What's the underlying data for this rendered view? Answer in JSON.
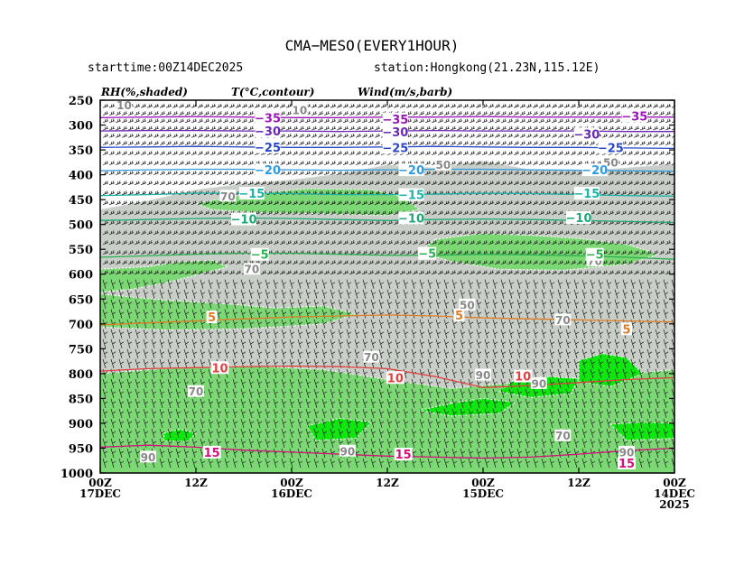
{
  "chart_data": {
    "type": "heatmap",
    "title": "CMA−MESO(EVERY1HOUR)",
    "subtitle_left": "starttime:00Z14DEC2025",
    "subtitle_right": "station:Hongkong(21.23N,115.12E)",
    "legend": {
      "rh": "RH(%,shaded)",
      "temp": "T(°C,contour)",
      "wind": "Wind(m/s,barb)"
    },
    "y_axis": {
      "label": "",
      "ticks": [
        "250",
        "300",
        "350",
        "400",
        "450",
        "500",
        "550",
        "600",
        "650",
        "700",
        "750",
        "800",
        "850",
        "900",
        "950",
        "1000"
      ],
      "ylim": [
        250,
        1000
      ]
    },
    "x_axis": {
      "label": "",
      "ticks": [
        {
          "line1": "00Z",
          "line2": "17DEC",
          "line3": ""
        },
        {
          "line1": "12Z",
          "line2": "",
          "line3": ""
        },
        {
          "line1": "00Z",
          "line2": "16DEC",
          "line3": ""
        },
        {
          "line1": "12Z",
          "line2": "",
          "line3": ""
        },
        {
          "line1": "00Z",
          "line2": "15DEC",
          "line3": ""
        },
        {
          "line1": "12Z",
          "line2": "",
          "line3": ""
        },
        {
          "line1": "00Z",
          "line2": "14DEC",
          "line3": "2025"
        }
      ],
      "hours": [
        72,
        60,
        48,
        36,
        24,
        12,
        0
      ]
    },
    "temperature_contours": [
      {
        "value": -35,
        "label": "−35",
        "color": "#9a14b8",
        "levels": [
          285,
          284,
          283,
          284,
          285,
          285,
          284,
          284,
          283,
          284,
          284,
          284,
          284
        ]
      },
      {
        "value": -30,
        "label": "−30",
        "color": "#6a28b4",
        "levels": [
          312,
          311,
          311,
          312,
          312,
          313,
          312,
          311,
          312,
          312,
          312,
          313,
          313
        ]
      },
      {
        "value": -25,
        "label": "−25",
        "color": "#2848c8",
        "levels": [
          345,
          344,
          343,
          344,
          345,
          345,
          344,
          343,
          344,
          345,
          345,
          346,
          347
        ]
      },
      {
        "value": -20,
        "label": "−20",
        "color": "#2f9be0",
        "levels": [
          392,
          390,
          389,
          389,
          390,
          391,
          390,
          389,
          389,
          390,
          391,
          392,
          393
        ]
      },
      {
        "value": -15,
        "label": "−15",
        "color": "#1ab4a8",
        "levels": [
          442,
          440,
          437,
          437,
          438,
          440,
          440,
          439,
          437,
          438,
          440,
          442,
          443
        ]
      },
      {
        "value": -10,
        "label": "−10",
        "color": "#1ea878",
        "levels": [
          492,
          490,
          488,
          487,
          488,
          490,
          492,
          490,
          489,
          490,
          492,
          494,
          496
        ]
      },
      {
        "value": -5,
        "label": "−5",
        "color": "#2ab050",
        "levels": [
          566,
          563,
          560,
          558,
          558,
          560,
          562,
          562,
          560,
          561,
          563,
          566,
          570
        ]
      },
      {
        "value": 5,
        "label": "5",
        "color": "#e07c24",
        "levels": [
          702,
          698,
          694,
          690,
          686,
          684,
          682,
          684,
          688,
          690,
          692,
          694,
          696
        ]
      },
      {
        "value": 10,
        "label": "10",
        "color": "#e04040",
        "levels": [
          795,
          790,
          788,
          786,
          785,
          786,
          790,
          806,
          828,
          824,
          818,
          812,
          808
        ]
      },
      {
        "value": 15,
        "label": "15",
        "color": "#d4107c",
        "levels": [
          948,
          944,
          948,
          954,
          958,
          962,
          966,
          968,
          970,
          968,
          962,
          955,
          950
        ]
      }
    ],
    "contour_labels": [
      {
        "text": "−35",
        "hour": 51,
        "p": 285,
        "c": "#9a14b8"
      },
      {
        "text": "−35",
        "hour": 35,
        "p": 288,
        "c": "#9a14b8"
      },
      {
        "text": "−35",
        "hour": 5,
        "p": 282,
        "c": "#9a14b8"
      },
      {
        "text": "−30",
        "hour": 51,
        "p": 312,
        "c": "#6a28b4"
      },
      {
        "text": "−30",
        "hour": 35,
        "p": 314,
        "c": "#6a28b4"
      },
      {
        "text": "−30",
        "hour": 11,
        "p": 318,
        "c": "#6a28b4"
      },
      {
        "text": "−25",
        "hour": 51,
        "p": 344,
        "c": "#2848c8"
      },
      {
        "text": "−25",
        "hour": 35,
        "p": 345,
        "c": "#2848c8"
      },
      {
        "text": "−25",
        "hour": 8,
        "p": 345,
        "c": "#2848c8"
      },
      {
        "text": "−20",
        "hour": 51,
        "p": 390,
        "c": "#2f9be0"
      },
      {
        "text": "−20",
        "hour": 33,
        "p": 390,
        "c": "#2f9be0"
      },
      {
        "text": "−20",
        "hour": 10,
        "p": 390,
        "c": "#2f9be0"
      },
      {
        "text": "−15",
        "hour": 53,
        "p": 437,
        "c": "#1ab4a8"
      },
      {
        "text": "−15",
        "hour": 33,
        "p": 440,
        "c": "#1ab4a8"
      },
      {
        "text": "−15",
        "hour": 11,
        "p": 437,
        "c": "#1ab4a8"
      },
      {
        "text": "−10",
        "hour": 54,
        "p": 489,
        "c": "#1ea878"
      },
      {
        "text": "−10",
        "hour": 33,
        "p": 487,
        "c": "#1ea878"
      },
      {
        "text": "−10",
        "hour": 12,
        "p": 486,
        "c": "#1ea878"
      },
      {
        "text": "−5",
        "hour": 52,
        "p": 560,
        "c": "#2ab050"
      },
      {
        "text": "−5",
        "hour": 31,
        "p": 558,
        "c": "#2ab050"
      },
      {
        "text": "−5",
        "hour": 10,
        "p": 560,
        "c": "#2ab050"
      },
      {
        "text": "5",
        "hour": 58,
        "p": 686,
        "c": "#e07c24"
      },
      {
        "text": "5",
        "hour": 27,
        "p": 682,
        "c": "#e07c24"
      },
      {
        "text": "5",
        "hour": 6,
        "p": 710,
        "c": "#e07c24"
      },
      {
        "text": "10",
        "hour": 57,
        "p": 788,
        "c": "#e04040"
      },
      {
        "text": "10",
        "hour": 35,
        "p": 808,
        "c": "#e04040"
      },
      {
        "text": "10",
        "hour": 19,
        "p": 805,
        "c": "#e04040"
      },
      {
        "text": "15",
        "hour": 58,
        "p": 958,
        "c": "#d4107c"
      },
      {
        "text": "15",
        "hour": 34,
        "p": 962,
        "c": "#d4107c"
      },
      {
        "text": "15",
        "hour": 6,
        "p": 980,
        "c": "#d4107c"
      }
    ],
    "rh_labels": [
      {
        "text": "10",
        "hour": 69,
        "p": 260
      },
      {
        "text": "10",
        "hour": 47,
        "p": 270
      },
      {
        "text": "50",
        "hour": 29,
        "p": 380
      },
      {
        "text": "50",
        "hour": 8,
        "p": 375
      },
      {
        "text": "70",
        "hour": 56,
        "p": 443
      },
      {
        "text": "70",
        "hour": 53,
        "p": 590
      },
      {
        "text": "70",
        "hour": 10,
        "p": 573
      },
      {
        "text": "70",
        "hour": 38,
        "p": 767
      },
      {
        "text": "70",
        "hour": 60,
        "p": 836
      },
      {
        "text": "50",
        "hour": 26,
        "p": 662
      },
      {
        "text": "70",
        "hour": 14,
        "p": 692
      },
      {
        "text": "90",
        "hour": 24,
        "p": 803
      },
      {
        "text": "90",
        "hour": 17,
        "p": 820
      },
      {
        "text": "90",
        "hour": 41,
        "p": 956
      },
      {
        "text": "90",
        "hour": 66,
        "p": 968
      },
      {
        "text": "70",
        "hour": 14,
        "p": 925
      },
      {
        "text": "90",
        "hour": 6,
        "p": 958
      }
    ],
    "rh_regions": [
      {
        "level": "grey",
        "points": [
          [
            72,
            470
          ],
          [
            66,
            452
          ],
          [
            60,
            430
          ],
          [
            54,
            418
          ],
          [
            48,
            410
          ],
          [
            42,
            398
          ],
          [
            36,
            380
          ],
          [
            30,
            386
          ],
          [
            24,
            372
          ],
          [
            18,
            390
          ],
          [
            12,
            392
          ],
          [
            6,
            386
          ],
          [
            0,
            378
          ],
          [
            0,
            1000
          ],
          [
            72,
            1000
          ]
        ]
      },
      {
        "level": "green",
        "points": [
          [
            72,
            590
          ],
          [
            66,
            585
          ],
          [
            62,
            575
          ],
          [
            58,
            572
          ],
          [
            56,
            585
          ],
          [
            60,
            602
          ],
          [
            64,
            618
          ],
          [
            68,
            630
          ],
          [
            72,
            636
          ]
        ]
      },
      {
        "level": "green",
        "points": [
          [
            60,
            458
          ],
          [
            54,
            440
          ],
          [
            46,
            428
          ],
          [
            38,
            430
          ],
          [
            34,
            445
          ],
          [
            32,
            470
          ],
          [
            36,
            482
          ],
          [
            44,
            478
          ],
          [
            52,
            476
          ],
          [
            58,
            470
          ]
        ]
      },
      {
        "level": "green",
        "points": [
          [
            30,
            530
          ],
          [
            24,
            518
          ],
          [
            18,
            522
          ],
          [
            12,
            528
          ],
          [
            6,
            540
          ],
          [
            2,
            560
          ],
          [
            6,
            580
          ],
          [
            14,
            592
          ],
          [
            22,
            590
          ],
          [
            28,
            574
          ],
          [
            32,
            556
          ]
        ]
      },
      {
        "level": "green",
        "points": [
          [
            72,
            800
          ],
          [
            64,
            790
          ],
          [
            54,
            784
          ],
          [
            44,
            792
          ],
          [
            36,
            812
          ],
          [
            28,
            830
          ],
          [
            20,
            818
          ],
          [
            12,
            808
          ],
          [
            4,
            798
          ],
          [
            0,
            792
          ],
          [
            0,
            1000
          ],
          [
            72,
            1000
          ]
        ]
      },
      {
        "level": "green",
        "points": [
          [
            72,
            640
          ],
          [
            64,
            652
          ],
          [
            56,
            660
          ],
          [
            50,
            668
          ],
          [
            44,
            664
          ],
          [
            40,
            680
          ],
          [
            44,
            700
          ],
          [
            54,
            710
          ],
          [
            64,
            712
          ],
          [
            72,
            706
          ]
        ]
      },
      {
        "level": "bright",
        "points": [
          [
            28,
            860
          ],
          [
            24,
            850
          ],
          [
            20,
            858
          ],
          [
            22,
            880
          ],
          [
            28,
            885
          ],
          [
            32,
            874
          ]
        ]
      },
      {
        "level": "bright",
        "points": [
          [
            20,
            812
          ],
          [
            16,
            806
          ],
          [
            12,
            810
          ],
          [
            13,
            840
          ],
          [
            18,
            848
          ],
          [
            22,
            836
          ]
        ]
      },
      {
        "level": "bright",
        "points": [
          [
            12,
            774
          ],
          [
            9,
            760
          ],
          [
            6,
            768
          ],
          [
            4,
            800
          ],
          [
            8,
            826
          ],
          [
            12,
            816
          ]
        ]
      },
      {
        "level": "bright",
        "points": [
          [
            46,
            905
          ],
          [
            42,
            890
          ],
          [
            38,
            898
          ],
          [
            40,
            930
          ],
          [
            45,
            934
          ]
        ]
      },
      {
        "level": "bright",
        "points": [
          [
            64,
            920
          ],
          [
            62,
            912
          ],
          [
            60,
            920
          ],
          [
            61,
            936
          ],
          [
            64,
            936
          ]
        ]
      },
      {
        "level": "bright",
        "points": [
          [
            8,
            902
          ],
          [
            4,
            898
          ],
          [
            0,
            900
          ],
          [
            0,
            930
          ],
          [
            6,
            934
          ]
        ]
      }
    ],
    "wind_rows": [
      265,
      280,
      295,
      310,
      325,
      340,
      360,
      380,
      400,
      420,
      440,
      460,
      480,
      500,
      520,
      540,
      560,
      580,
      600,
      620,
      640,
      660,
      680,
      700,
      720,
      740,
      760,
      780,
      800,
      820,
      840,
      860,
      880,
      900,
      920,
      940,
      960,
      980
    ]
  }
}
